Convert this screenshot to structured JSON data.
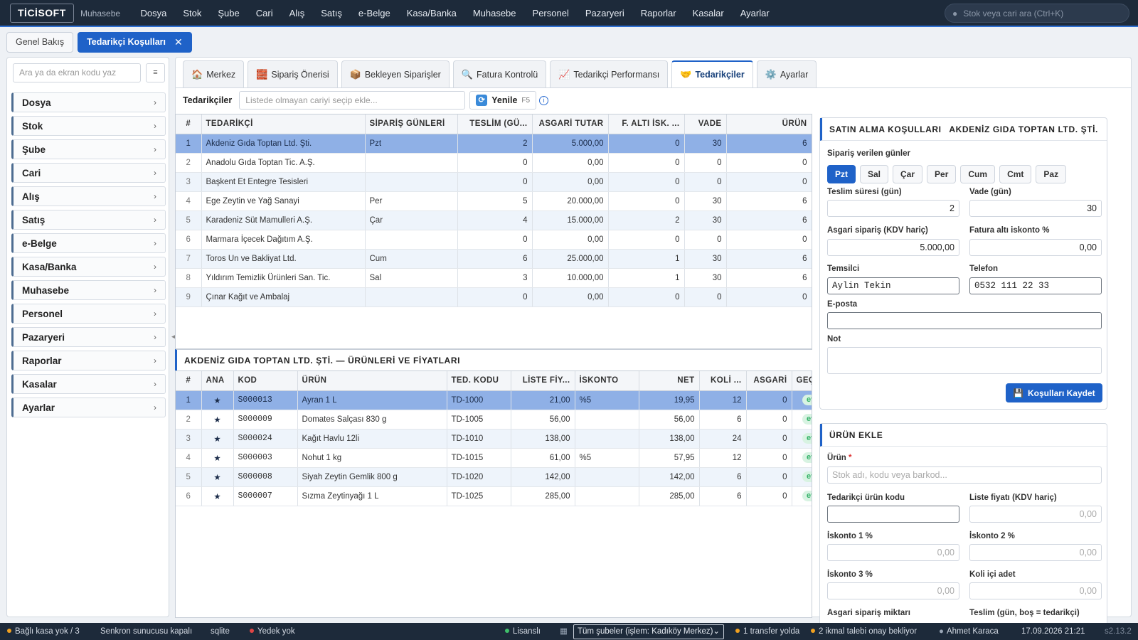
{
  "app": {
    "logo": "TİCİSOFT",
    "module": "Muhasebe"
  },
  "menu": [
    "Dosya",
    "Stok",
    "Şube",
    "Cari",
    "Alış",
    "Satış",
    "e-Belge",
    "Kasa/Banka",
    "Muhasebe",
    "Personel",
    "Pazaryeri",
    "Raporlar",
    "Kasalar",
    "Ayarlar"
  ],
  "global_search": {
    "placeholder": "Stok veya cari ara (Ctrl+K)"
  },
  "doc_tabs": {
    "overview": "Genel Bakış",
    "active": "Tedarikçi Koşulları",
    "close": "✕"
  },
  "sidebar": {
    "search_placeholder": "Ara ya da ekran kodu yaz",
    "button_glyph": "≡",
    "items": [
      "Dosya",
      "Stok",
      "Şube",
      "Cari",
      "Alış",
      "Satış",
      "e-Belge",
      "Kasa/Banka",
      "Muhasebe",
      "Personel",
      "Pazaryeri",
      "Raporlar",
      "Kasalar",
      "Ayarlar"
    ],
    "collapse_glyph": "◀"
  },
  "sub_tabs": [
    {
      "label": "Merkez",
      "icon": "home-icon",
      "glyph": "🏠"
    },
    {
      "label": "Sipariş Önerisi",
      "icon": "bricks-icon",
      "glyph": "🧱"
    },
    {
      "label": "Bekleyen Siparişler",
      "icon": "box-icon",
      "glyph": "📦"
    },
    {
      "label": "Fatura Kontrolü",
      "icon": "magnifier-icon",
      "glyph": "🔍"
    },
    {
      "label": "Tedarikçi Performansı",
      "icon": "chart-icon",
      "glyph": "📈"
    },
    {
      "label": "Tedarikçiler",
      "icon": "handshake-icon",
      "glyph": "🤝",
      "active": true
    },
    {
      "label": "Ayarlar",
      "icon": "gear-icon",
      "glyph": "⚙️"
    }
  ],
  "toolbar": {
    "label": "Tedarikçiler",
    "add_placeholder": "Listede olmayan cariyi seçip ekle...",
    "refresh": "Yenile",
    "refresh_key": "F5",
    "info": "i",
    "refresh_glyph": "⟳"
  },
  "suppliers": {
    "columns": [
      "#",
      "TEDARİKÇİ",
      "SİPARİŞ GÜNLERİ",
      "TESLİM (GÜ...",
      "ASGARİ TUTAR",
      "F. ALTI İSK. ...",
      "VADE",
      "ÜRÜN"
    ],
    "rows": [
      [
        "1",
        "Akdeniz Gıda Toptan Ltd. Şti.",
        "Pzt",
        "2",
        "5.000,00",
        "0",
        "30",
        "6"
      ],
      [
        "2",
        "Anadolu Gıda Toptan Tic. A.Ş.",
        "",
        "0",
        "0,00",
        "0",
        "0",
        "0"
      ],
      [
        "3",
        "Başkent Et Entegre Tesisleri",
        "",
        "0",
        "0,00",
        "0",
        "0",
        "0"
      ],
      [
        "4",
        "Ege Zeytin ve Yağ Sanayi",
        "Per",
        "5",
        "20.000,00",
        "0",
        "30",
        "6"
      ],
      [
        "5",
        "Karadeniz Süt Mamulleri A.Ş.",
        "Çar",
        "4",
        "15.000,00",
        "2",
        "30",
        "6"
      ],
      [
        "6",
        "Marmara İçecek Dağıtım A.Ş.",
        "",
        "0",
        "0,00",
        "0",
        "0",
        "0"
      ],
      [
        "7",
        "Toros Un ve Bakliyat Ltd.",
        "Cum",
        "6",
        "25.000,00",
        "1",
        "30",
        "6"
      ],
      [
        "8",
        "Yıldırım Temizlik Ürünleri San. Tic.",
        "Sal",
        "3",
        "10.000,00",
        "1",
        "30",
        "6"
      ],
      [
        "9",
        "Çınar Kağıt ve Ambalaj",
        "",
        "0",
        "0,00",
        "0",
        "0",
        "0"
      ]
    ]
  },
  "products": {
    "title": "AKDENİZ GIDA TOPTAN LTD. ŞTİ. — ÜRÜNLERİ VE FİYATLARI",
    "columns": [
      "#",
      "ANA",
      "KOD",
      "ÜRÜN",
      "TED. KODU",
      "LİSTE FİY...",
      "İSKONTO",
      "NET",
      "KOLİ ...",
      "ASGARİ",
      "GEÇER"
    ],
    "rows": [
      [
        "1",
        "★",
        "S000013",
        "Ayran 1 L",
        "TD-1000",
        "21,00",
        "%5",
        "19,95",
        "12",
        "0",
        "evet"
      ],
      [
        "2",
        "★",
        "S000009",
        "Domates Salçası 830 g",
        "TD-1005",
        "56,00",
        "",
        "56,00",
        "6",
        "0",
        "evet"
      ],
      [
        "3",
        "★",
        "S000024",
        "Kağıt Havlu 12li",
        "TD-1010",
        "138,00",
        "",
        "138,00",
        "24",
        "0",
        "evet"
      ],
      [
        "4",
        "★",
        "S000003",
        "Nohut 1 kg",
        "TD-1015",
        "61,00",
        "%5",
        "57,95",
        "12",
        "0",
        "evet"
      ],
      [
        "5",
        "★",
        "S000008",
        "Siyah Zeytin Gemlik 800 g",
        "TD-1020",
        "142,00",
        "",
        "142,00",
        "6",
        "0",
        "evet"
      ],
      [
        "6",
        "★",
        "S000007",
        "Sızma Zeytinyağı 1 L",
        "TD-1025",
        "285,00",
        "",
        "285,00",
        "6",
        "0",
        "evet"
      ]
    ]
  },
  "terms": {
    "title": "SATIN ALMA KOŞULLARI",
    "supplier": "AKDENİZ GIDA TOPTAN LTD. ŞTİ.",
    "days_label": "Sipariş verilen günler",
    "days": [
      {
        "label": "Pzt",
        "on": true
      },
      {
        "label": "Sal"
      },
      {
        "label": "Çar"
      },
      {
        "label": "Per"
      },
      {
        "label": "Cum"
      },
      {
        "label": "Cmt"
      },
      {
        "label": "Paz"
      }
    ],
    "delivery_label": "Teslim süresi (gün)",
    "delivery": "2",
    "term_label": "Vade (gün)",
    "term": "30",
    "min_order_label": "Asgari sipariş (KDV hariç)",
    "min_order": "5.000,00",
    "invoice_disc_label": "Fatura altı iskonto %",
    "invoice_disc": "0,00",
    "rep_label": "Temsilci",
    "rep": "Aylin Tekin",
    "phone_label": "Telefon",
    "phone": "0532 111 22 33",
    "email_label": "E-posta",
    "email": "",
    "note_label": "Not",
    "note": "",
    "save": "Koşulları Kaydet",
    "save_glyph": "💾"
  },
  "add_product": {
    "title": "ÜRÜN EKLE",
    "product_label": "Ürün",
    "required": "*",
    "product_placeholder": "Stok adı, kodu veya barkod...",
    "sup_code_label": "Tedarikçi ürün kodu",
    "list_price_label": "Liste fiyatı (KDV hariç)",
    "list_price_ph": "0,00",
    "disc1_label": "İskonto 1 %",
    "disc1_ph": "0,00",
    "disc2_label": "İskonto 2 %",
    "disc2_ph": "0,00",
    "disc3_label": "İskonto 3 %",
    "disc3_ph": "0,00",
    "case_label": "Koli içi adet",
    "case_ph": "0,00",
    "min_qty_label": "Asgari sipariş miktarı",
    "lead_label": "Teslim (gün, boş = tedarikçi)"
  },
  "statusbar": {
    "cash": "Bağlı kasa yok / 3",
    "sync": "Senkron sunucusu kapalı",
    "db": "sqlite",
    "backup": "Yedek yok",
    "license": "Lisanslı",
    "branch": "Tüm şubeler (işlem: Kadıköy Merkez)",
    "transfer": "1 transfer yolda",
    "supply": "2 ikmal talebi onay bekliyor",
    "user": "Ahmet Karaca",
    "datetime": "17.09.2026 21:21",
    "version": "s2.13.2",
    "colors": {
      "ok": "#3fbf6a",
      "warn": "#f0a020",
      "err": "#e04545"
    }
  }
}
